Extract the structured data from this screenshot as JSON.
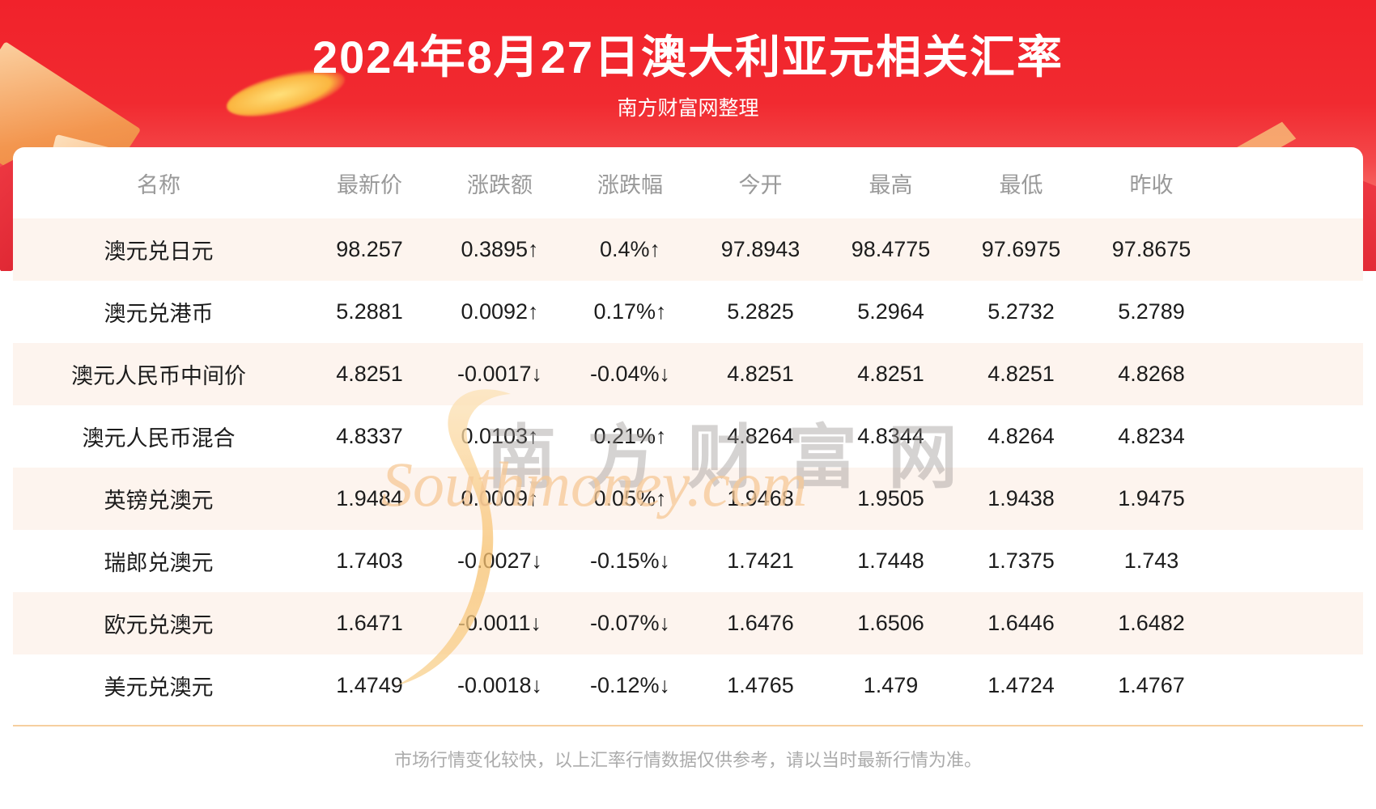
{
  "header": {
    "title": "2024年8月27日澳大利亚元相关汇率",
    "subtitle": "南方财富网整理"
  },
  "table": {
    "columns": [
      "名称",
      "最新价",
      "涨跌额",
      "涨跌幅",
      "今开",
      "最高",
      "最低",
      "昨收"
    ],
    "rows": [
      {
        "name": "澳元兑日元",
        "latest": "98.257",
        "change": "0.3895",
        "change_pct": "0.4%",
        "direction": "up",
        "open": "97.8943",
        "high": "98.4775",
        "low": "97.6975",
        "prev_close": "97.8675"
      },
      {
        "name": "澳元兑港币",
        "latest": "5.2881",
        "change": "0.0092",
        "change_pct": "0.17%",
        "direction": "up",
        "open": "5.2825",
        "high": "5.2964",
        "low": "5.2732",
        "prev_close": "5.2789"
      },
      {
        "name": "澳元人民币中间价",
        "latest": "4.8251",
        "change": "-0.0017",
        "change_pct": "-0.04%",
        "direction": "down",
        "open": "4.8251",
        "high": "4.8251",
        "low": "4.8251",
        "prev_close": "4.8268"
      },
      {
        "name": "澳元人民币混合",
        "latest": "4.8337",
        "change": "0.0103",
        "change_pct": "0.21%",
        "direction": "up",
        "open": "4.8264",
        "high": "4.8344",
        "low": "4.8264",
        "prev_close": "4.8234"
      },
      {
        "name": "英镑兑澳元",
        "latest": "1.9484",
        "change": "0.0009",
        "change_pct": "0.05%",
        "direction": "up",
        "open": "1.9468",
        "high": "1.9505",
        "low": "1.9438",
        "prev_close": "1.9475"
      },
      {
        "name": "瑞郎兑澳元",
        "latest": "1.7403",
        "change": "-0.0027",
        "change_pct": "-0.15%",
        "direction": "down",
        "open": "1.7421",
        "high": "1.7448",
        "low": "1.7375",
        "prev_close": "1.743"
      },
      {
        "name": "欧元兑澳元",
        "latest": "1.6471",
        "change": "-0.0011",
        "change_pct": "-0.07%",
        "direction": "down",
        "open": "1.6476",
        "high": "1.6506",
        "low": "1.6446",
        "prev_close": "1.6482"
      },
      {
        "name": "美元兑澳元",
        "latest": "1.4749",
        "change": "-0.0018",
        "change_pct": "-0.12%",
        "direction": "down",
        "open": "1.4765",
        "high": "1.479",
        "low": "1.4724",
        "prev_close": "1.4767"
      }
    ],
    "arrows": {
      "up": "↑",
      "down": "↓"
    }
  },
  "watermark": {
    "cn": "南方财富网",
    "en": "Southmoney.com"
  },
  "footer": {
    "note": "市场行情变化较快，以上汇率行情数据仅供参考，请以当时最新行情为准。"
  },
  "colors": {
    "banner_red_top": "#f1222b",
    "banner_red_bottom": "#fcbcab",
    "up_red": "#ec0f10",
    "down_green": "#0d9117",
    "row_stripe": "#fdf4ee",
    "header_gray": "#999999",
    "divider_peach": "#f6cf9f",
    "footnote_gray": "#ababab"
  }
}
